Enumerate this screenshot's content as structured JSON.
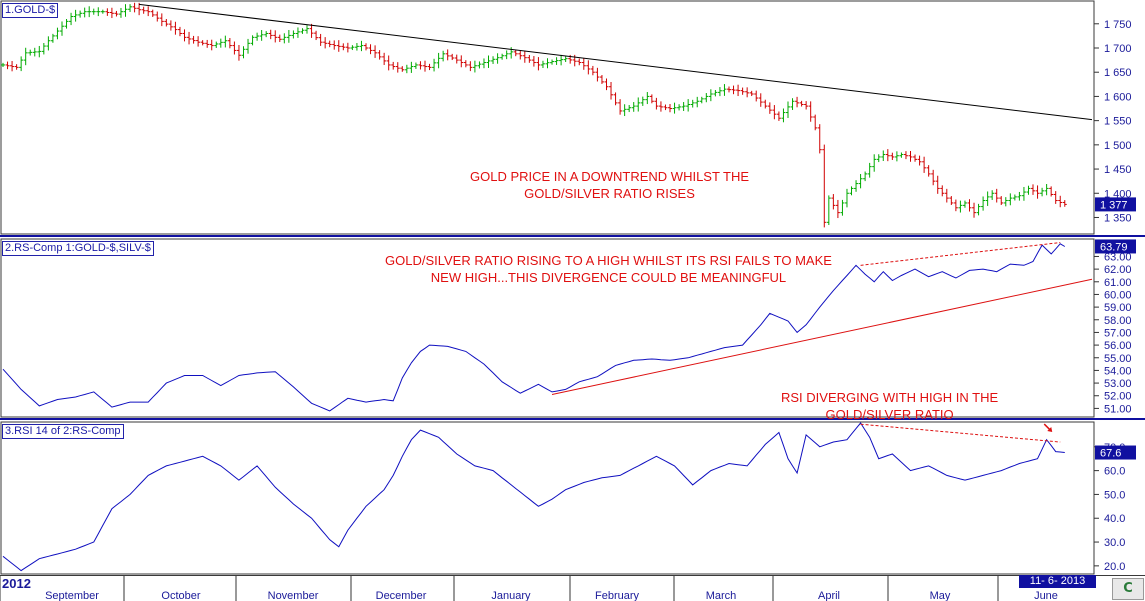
{
  "app": {
    "year": "2012",
    "date_display": "11- 6- 2013",
    "logo_icon": "c-logo-icon"
  },
  "panels": [
    {
      "id": "price",
      "title": "1.GOLD-$",
      "last_value_label": "1 377"
    },
    {
      "id": "ratio",
      "title": "2.RS-Comp 1:GOLD-$,SILV-$",
      "last_value_label": "63.79"
    },
    {
      "id": "rsi",
      "title": "3.RSI 14 of 2:RS-Comp",
      "last_value_label": "67.6"
    }
  ],
  "annotations": {
    "price_note": [
      "GOLD PRICE IN A DOWNTREND WHILST THE",
      "GOLD/SILVER RATIO RISES"
    ],
    "ratio_note": [
      "GOLD/SILVER RATIO RISING TO A HIGH WHILST ITS RSI FAILS TO MAKE",
      "NEW HIGH...THIS DIVERGENCE COULD BE MEANINGFUL"
    ],
    "rsi_note": [
      "RSI DIVERGING WITH HIGH IN THE",
      "GOLD/SILVER RATIO"
    ]
  },
  "colors": {
    "up_bar": "#00aa00",
    "down_bar": "#d00000",
    "series_line": "#1010c0",
    "trend_black": "#000000",
    "trend_red": "#dd1111",
    "annotation": "#e01010",
    "axis_text": "#1a1a99",
    "last_value_box": "#1010a0"
  },
  "chart_data": [
    {
      "type": "ohlc",
      "title": "1.GOLD-$",
      "x_months": [
        "September",
        "October",
        "November",
        "December",
        "January",
        "February",
        "March",
        "April",
        "May",
        "June"
      ],
      "y_ticks": [
        1350,
        1400,
        1450,
        1500,
        1550,
        1600,
        1650,
        1700,
        1750
      ],
      "ylim": [
        1320,
        1795
      ],
      "anchors": [
        [
          0,
          1665
        ],
        [
          3,
          1660
        ],
        [
          5,
          1690
        ],
        [
          8,
          1693
        ],
        [
          10,
          1715
        ],
        [
          13,
          1745
        ],
        [
          15,
          1765
        ],
        [
          18,
          1775
        ],
        [
          22,
          1775
        ],
        [
          25,
          1770
        ],
        [
          28,
          1785
        ],
        [
          30,
          1779
        ],
        [
          32,
          1775
        ],
        [
          35,
          1755
        ],
        [
          38,
          1738
        ],
        [
          40,
          1722
        ],
        [
          43,
          1712
        ],
        [
          46,
          1705
        ],
        [
          49,
          1715
        ],
        [
          52,
          1685
        ],
        [
          55,
          1722
        ],
        [
          58,
          1730
        ],
        [
          61,
          1718
        ],
        [
          64,
          1730
        ],
        [
          67,
          1740
        ],
        [
          70,
          1712
        ],
        [
          73,
          1705
        ],
        [
          76,
          1700
        ],
        [
          79,
          1705
        ],
        [
          82,
          1690
        ],
        [
          85,
          1665
        ],
        [
          88,
          1655
        ],
        [
          91,
          1665
        ],
        [
          94,
          1660
        ],
        [
          97,
          1688
        ],
        [
          100,
          1675
        ],
        [
          103,
          1660
        ],
        [
          106,
          1670
        ],
        [
          109,
          1680
        ],
        [
          112,
          1692
        ],
        [
          115,
          1680
        ],
        [
          118,
          1665
        ],
        [
          121,
          1672
        ],
        [
          124,
          1678
        ],
        [
          127,
          1670
        ],
        [
          130,
          1650
        ],
        [
          133,
          1620
        ],
        [
          136,
          1570
        ],
        [
          139,
          1580
        ],
        [
          142,
          1600
        ],
        [
          144,
          1580
        ],
        [
          147,
          1575
        ],
        [
          150,
          1580
        ],
        [
          153,
          1590
        ],
        [
          156,
          1605
        ],
        [
          159,
          1615
        ],
        [
          162,
          1612
        ],
        [
          165,
          1605
        ],
        [
          168,
          1580
        ],
        [
          171,
          1555
        ],
        [
          174,
          1590
        ],
        [
          177,
          1580
        ],
        [
          179,
          1535
        ],
        [
          180,
          1490
        ],
        [
          181,
          1340
        ],
        [
          182,
          1390
        ],
        [
          184,
          1360
        ],
        [
          186,
          1400
        ],
        [
          188,
          1420
        ],
        [
          190,
          1440
        ],
        [
          192,
          1470
        ],
        [
          194,
          1480
        ],
        [
          196,
          1475
        ],
        [
          198,
          1480
        ],
        [
          200,
          1475
        ],
        [
          202,
          1465
        ],
        [
          204,
          1440
        ],
        [
          206,
          1410
        ],
        [
          208,
          1390
        ],
        [
          210,
          1370
        ],
        [
          212,
          1380
        ],
        [
          214,
          1360
        ],
        [
          216,
          1385
        ],
        [
          218,
          1400
        ],
        [
          220,
          1380
        ],
        [
          222,
          1390
        ],
        [
          224,
          1395
        ],
        [
          226,
          1410
        ],
        [
          228,
          1400
        ],
        [
          230,
          1410
        ],
        [
          232,
          1385
        ],
        [
          234,
          1377
        ]
      ],
      "last_value": 1377,
      "trendline": {
        "start": [
          30,
          1790
        ],
        "end": [
          240,
          1552
        ]
      }
    },
    {
      "type": "line",
      "title": "2.RS-Comp 1:GOLD-$,SILV-$",
      "y_ticks": [
        51,
        52,
        53,
        54,
        55,
        56,
        57,
        58,
        59,
        60,
        61,
        62,
        63
      ],
      "ylim": [
        50.4,
        64.3
      ],
      "anchors": [
        [
          0,
          54.1
        ],
        [
          4,
          52.5
        ],
        [
          8,
          51.2
        ],
        [
          12,
          51.7
        ],
        [
          16,
          51.9
        ],
        [
          20,
          52.3
        ],
        [
          24,
          51.1
        ],
        [
          28,
          51.5
        ],
        [
          32,
          51.5
        ],
        [
          36,
          53.0
        ],
        [
          40,
          53.6
        ],
        [
          44,
          53.6
        ],
        [
          48,
          52.8
        ],
        [
          52,
          53.6
        ],
        [
          56,
          53.8
        ],
        [
          60,
          53.9
        ],
        [
          64,
          52.7
        ],
        [
          68,
          51.4
        ],
        [
          72,
          50.8
        ],
        [
          76,
          51.8
        ],
        [
          80,
          51.5
        ],
        [
          84,
          51.7
        ],
        [
          86,
          51.6
        ],
        [
          88,
          53.4
        ],
        [
          90,
          54.6
        ],
        [
          92,
          55.5
        ],
        [
          94,
          56.0
        ],
        [
          98,
          55.9
        ],
        [
          102,
          55.5
        ],
        [
          106,
          54.5
        ],
        [
          110,
          53.1
        ],
        [
          114,
          52.2
        ],
        [
          118,
          52.9
        ],
        [
          121,
          52.3
        ],
        [
          124,
          52.5
        ],
        [
          127,
          53.1
        ],
        [
          131,
          53.5
        ],
        [
          135,
          54.4
        ],
        [
          139,
          54.8
        ],
        [
          143,
          54.9
        ],
        [
          147,
          54.8
        ],
        [
          151,
          55.0
        ],
        [
          155,
          55.4
        ],
        [
          159,
          55.8
        ],
        [
          163,
          56.0
        ],
        [
          165,
          56.8
        ],
        [
          167,
          57.6
        ],
        [
          169,
          58.5
        ],
        [
          171,
          58.2
        ],
        [
          173,
          57.9
        ],
        [
          175,
          57.0
        ],
        [
          177,
          57.6
        ],
        [
          180,
          59.0
        ],
        [
          183,
          60.3
        ],
        [
          186,
          61.5
        ],
        [
          188,
          62.3
        ],
        [
          190,
          61.6
        ],
        [
          192,
          61.0
        ],
        [
          194,
          61.8
        ],
        [
          196,
          61.1
        ],
        [
          198,
          61.5
        ],
        [
          201,
          62.0
        ],
        [
          204,
          61.4
        ],
        [
          207,
          61.8
        ],
        [
          210,
          61.3
        ],
        [
          213,
          61.9
        ],
        [
          216,
          62.0
        ],
        [
          219,
          61.8
        ],
        [
          222,
          62.4
        ],
        [
          225,
          62.3
        ],
        [
          227,
          62.6
        ],
        [
          229,
          63.9
        ],
        [
          231,
          63.2
        ],
        [
          233,
          64.0
        ],
        [
          234,
          63.79
        ]
      ],
      "last_value": 63.79,
      "trendline": {
        "start": [
          121,
          52.1
        ],
        "end": [
          240,
          61.2
        ]
      },
      "divergence_line": {
        "start": [
          189,
          62.3
        ],
        "end": [
          233,
          64.1
        ]
      }
    },
    {
      "type": "line",
      "title": "3.RSI 14 of 2:RS-Comp",
      "y_ticks": [
        20.0,
        30.0,
        40.0,
        50.0,
        60.0,
        67.6,
        70.0
      ],
      "ylim": [
        17,
        80
      ],
      "anchors": [
        [
          0,
          24
        ],
        [
          4,
          18
        ],
        [
          8,
          23
        ],
        [
          12,
          25
        ],
        [
          16,
          27
        ],
        [
          20,
          30
        ],
        [
          24,
          44
        ],
        [
          28,
          50
        ],
        [
          32,
          58
        ],
        [
          36,
          62
        ],
        [
          40,
          64
        ],
        [
          44,
          66
        ],
        [
          48,
          62
        ],
        [
          52,
          56
        ],
        [
          56,
          62
        ],
        [
          60,
          53
        ],
        [
          64,
          46
        ],
        [
          68,
          40
        ],
        [
          72,
          31
        ],
        [
          74,
          28
        ],
        [
          76,
          35
        ],
        [
          80,
          45
        ],
        [
          84,
          52
        ],
        [
          86,
          58
        ],
        [
          88,
          66
        ],
        [
          90,
          73
        ],
        [
          92,
          77
        ],
        [
          96,
          74
        ],
        [
          100,
          67
        ],
        [
          104,
          62
        ],
        [
          108,
          60
        ],
        [
          112,
          54
        ],
        [
          116,
          48
        ],
        [
          118,
          45
        ],
        [
          121,
          48
        ],
        [
          124,
          52
        ],
        [
          128,
          55
        ],
        [
          132,
          57
        ],
        [
          136,
          58
        ],
        [
          140,
          62
        ],
        [
          144,
          66
        ],
        [
          148,
          62
        ],
        [
          150,
          58
        ],
        [
          152,
          54
        ],
        [
          156,
          60
        ],
        [
          160,
          63
        ],
        [
          164,
          62
        ],
        [
          168,
          71
        ],
        [
          171,
          76
        ],
        [
          173,
          65
        ],
        [
          175,
          59
        ],
        [
          177,
          75
        ],
        [
          180,
          70
        ],
        [
          183,
          72
        ],
        [
          186,
          73
        ],
        [
          189,
          80
        ],
        [
          191,
          74
        ],
        [
          193,
          65
        ],
        [
          196,
          67
        ],
        [
          200,
          60
        ],
        [
          204,
          62
        ],
        [
          208,
          58
        ],
        [
          212,
          56
        ],
        [
          216,
          58
        ],
        [
          220,
          60
        ],
        [
          224,
          63
        ],
        [
          228,
          65
        ],
        [
          230,
          73
        ],
        [
          232,
          68
        ],
        [
          234,
          67.6
        ]
      ],
      "last_value": 67.6,
      "divergence_line": {
        "start": [
          189,
          79.5
        ],
        "end": [
          233,
          72
        ]
      }
    }
  ]
}
